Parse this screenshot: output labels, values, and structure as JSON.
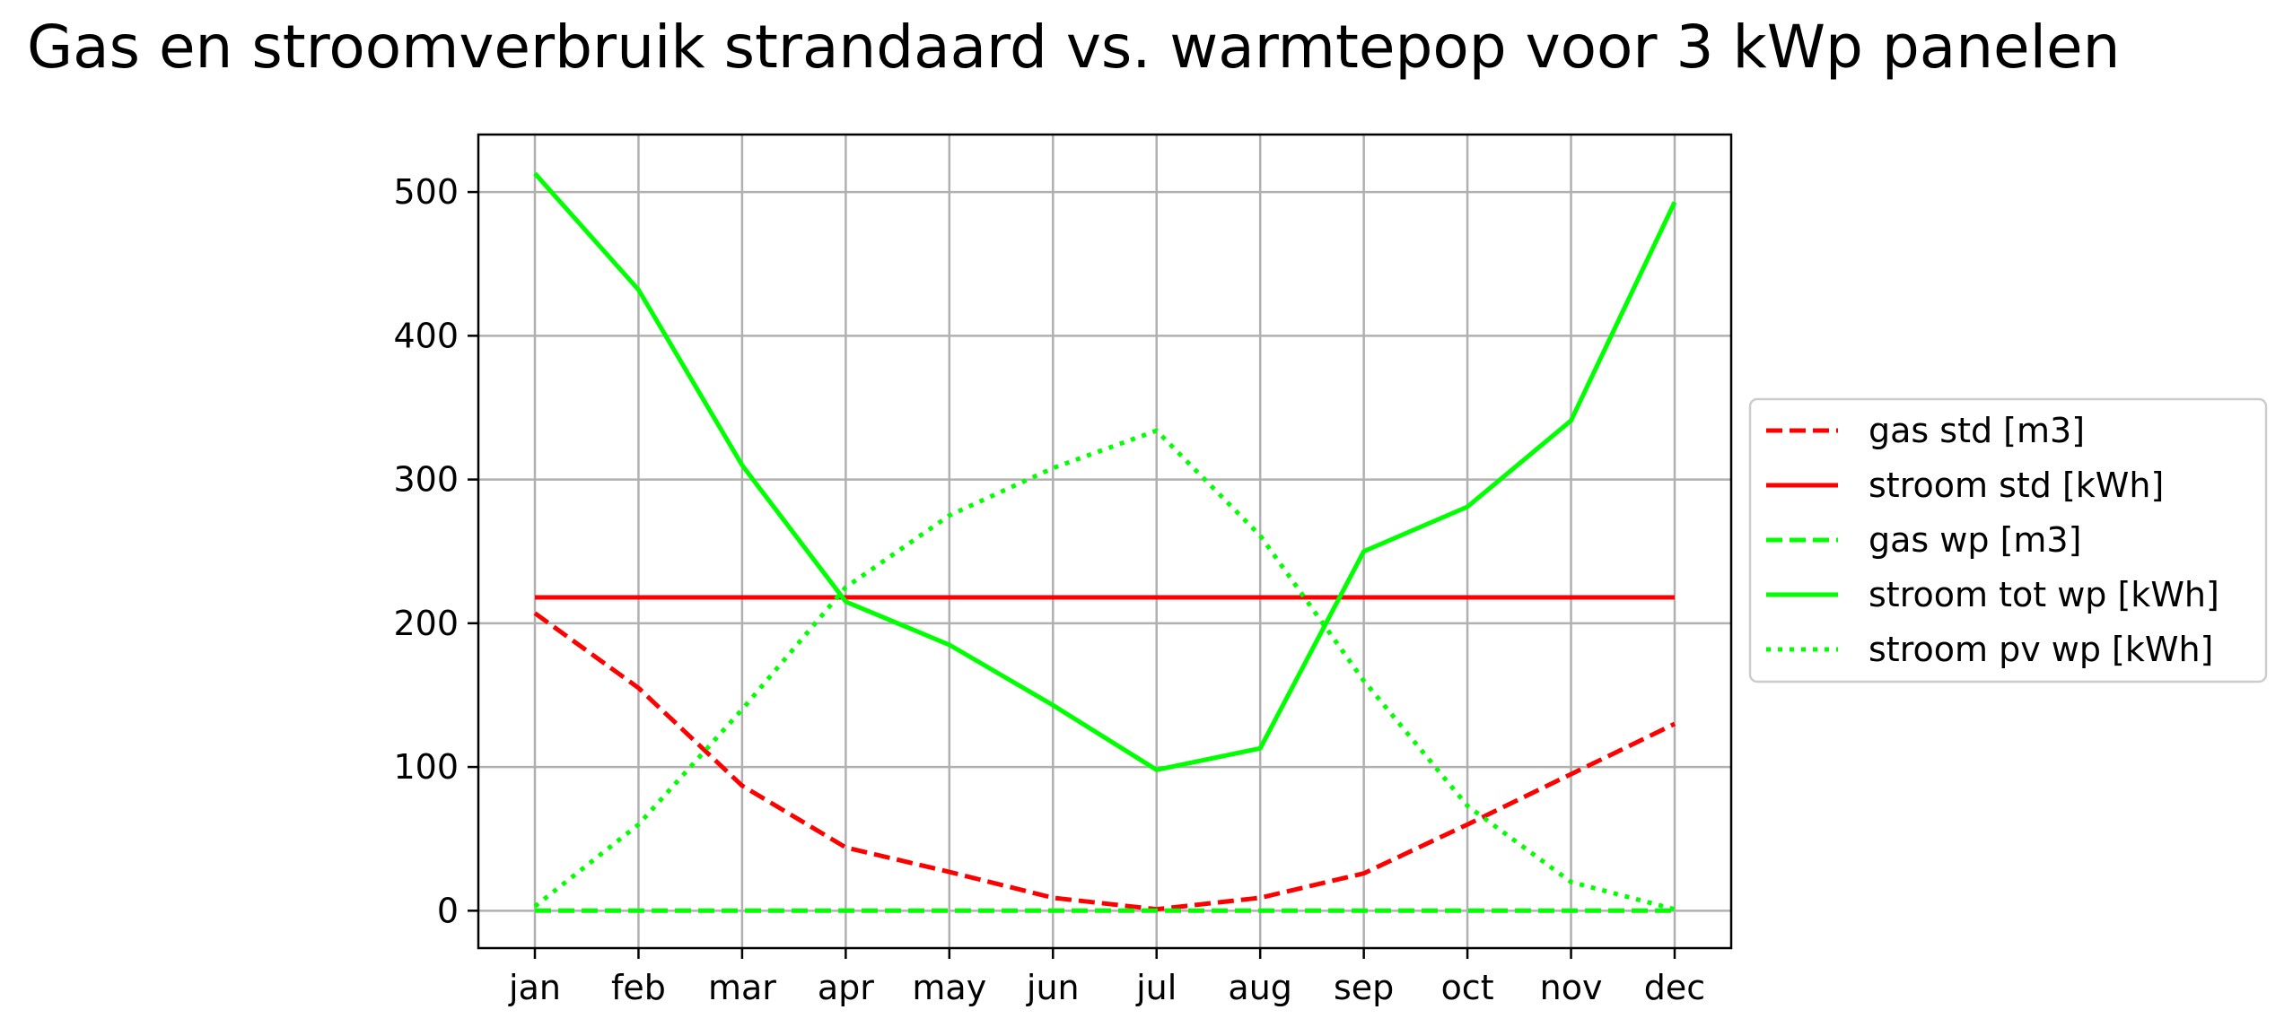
{
  "chart_data": {
    "type": "line",
    "title": "Gas en stroomverbruik strandaard vs. warmtepop voor 3 kWp panelen",
    "xlabel": "",
    "ylabel": "",
    "categories": [
      "jan",
      "feb",
      "mar",
      "apr",
      "may",
      "jun",
      "jul",
      "aug",
      "sep",
      "oct",
      "nov",
      "dec"
    ],
    "ylim": [
      -26,
      540
    ],
    "yticks": [
      0,
      100,
      200,
      300,
      400,
      500
    ],
    "yticklabels": [
      "0",
      "100",
      "200",
      "300",
      "400",
      "500"
    ],
    "grid": true,
    "legend_position": "right, outside",
    "series": [
      {
        "name": "gas std [m3]",
        "color": "#ff0000",
        "style": "dashed",
        "values": [
          207,
          155,
          87,
          44,
          27,
          9,
          1,
          9,
          26,
          60,
          95,
          130
        ]
      },
      {
        "name": "stroom std [kWh]",
        "color": "#ff0000",
        "style": "solid",
        "values": [
          218,
          218,
          218,
          218,
          218,
          218,
          218,
          218,
          218,
          218,
          218,
          218
        ]
      },
      {
        "name": "gas wp [m3]",
        "color": "#00ff00",
        "style": "dashed",
        "values": [
          0,
          0,
          0,
          0,
          0,
          0,
          0,
          0,
          0,
          0,
          0,
          0
        ]
      },
      {
        "name": "stroom tot wp [kWh]",
        "color": "#00ff00",
        "style": "solid",
        "values": [
          513,
          432,
          310,
          215,
          185,
          143,
          98,
          113,
          250,
          281,
          341,
          493
        ]
      },
      {
        "name": "stroom pv wp [kWh]",
        "color": "#00ff00",
        "style": "dotted",
        "values": [
          3,
          60,
          140,
          225,
          275,
          308,
          334,
          261,
          160,
          73,
          20,
          1
        ]
      }
    ]
  }
}
